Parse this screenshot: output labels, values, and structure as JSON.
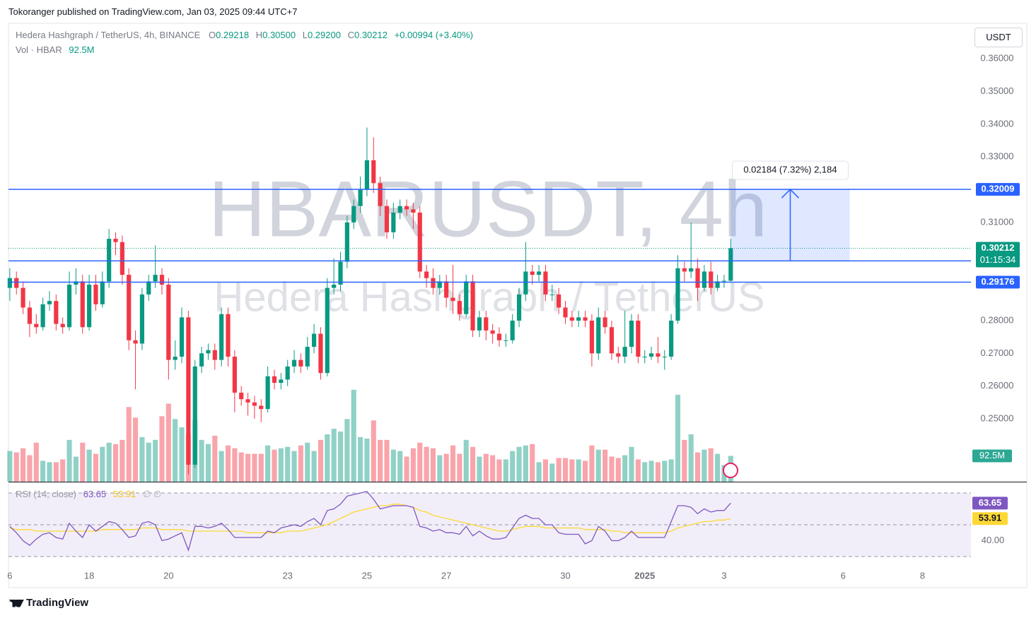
{
  "header": {
    "publisher": "Tokoranger published on TradingView.com, Jan 03, 2025 09:44 UTC+7"
  },
  "footer": {
    "brand": "TradingView"
  },
  "currency_button": "USDT",
  "chart_data": {
    "type": "candlestick",
    "symbol": "Hedera Hashgraph / TetherUS, 4h, BINANCE",
    "legend": [
      {
        "key": "O",
        "value": "0.29218"
      },
      {
        "key": "H",
        "value": "0.30500"
      },
      {
        "key": "L",
        "value": "0.29200"
      },
      {
        "key": "C",
        "value": "0.30212"
      }
    ],
    "change": "+0.00994 (+3.40%)",
    "watermark": [
      "HBARUSDT, 4h",
      "Hedera Hashgraph / TetherUS"
    ],
    "up_color": "#089981",
    "down_color": "#f23645",
    "xlim": [
      -0.2,
      145
    ],
    "xticks": [
      {
        "value": 0,
        "label": "6"
      },
      {
        "value": 12,
        "label": "18"
      },
      {
        "value": 24,
        "label": "20"
      },
      {
        "value": 42,
        "label": "23"
      },
      {
        "value": 54,
        "label": "25"
      },
      {
        "value": 66,
        "label": "27"
      },
      {
        "value": 84,
        "label": "30"
      },
      {
        "value": 96,
        "label": "2025"
      },
      {
        "value": 108,
        "label": "3"
      },
      {
        "value": 126,
        "label": "6"
      },
      {
        "value": 138,
        "label": "8"
      }
    ],
    "ylim": [
      0.2308,
      0.3704
    ],
    "yticks": [
      {
        "value": 0.25,
        "label": "0.25000"
      },
      {
        "value": 0.26,
        "label": "0.26000"
      },
      {
        "value": 0.27,
        "label": "0.27000"
      },
      {
        "value": 0.28,
        "label": "0.28000"
      },
      {
        "value": 0.31,
        "label": "0.31000"
      },
      {
        "value": 0.33,
        "label": "0.33000"
      },
      {
        "value": 0.34,
        "label": "0.34000"
      },
      {
        "value": 0.35,
        "label": "0.35000"
      },
      {
        "value": 0.36,
        "label": "0.36000"
      }
    ],
    "candles": [
      [
        0.29,
        0.296,
        0.286,
        0.293
      ],
      [
        0.293,
        0.295,
        0.288,
        0.29
      ],
      [
        0.29,
        0.292,
        0.282,
        0.284
      ],
      [
        0.284,
        0.286,
        0.275,
        0.279
      ],
      [
        0.279,
        0.282,
        0.276,
        0.278
      ],
      [
        0.278,
        0.287,
        0.277,
        0.285
      ],
      [
        0.285,
        0.289,
        0.283,
        0.286
      ],
      [
        0.286,
        0.288,
        0.277,
        0.279
      ],
      [
        0.279,
        0.281,
        0.276,
        0.278
      ],
      [
        0.278,
        0.295,
        0.277,
        0.291
      ],
      [
        0.291,
        0.296,
        0.288,
        0.292
      ],
      [
        0.292,
        0.294,
        0.276,
        0.278
      ],
      [
        0.278,
        0.294,
        0.277,
        0.291
      ],
      [
        0.291,
        0.294,
        0.283,
        0.285
      ],
      [
        0.285,
        0.295,
        0.284,
        0.292
      ],
      [
        0.292,
        0.308,
        0.29,
        0.305
      ],
      [
        0.305,
        0.307,
        0.3,
        0.304
      ],
      [
        0.304,
        0.306,
        0.291,
        0.294
      ],
      [
        0.294,
        0.296,
        0.271,
        0.274
      ],
      [
        0.274,
        0.277,
        0.259,
        0.273
      ],
      [
        0.273,
        0.29,
        0.271,
        0.288
      ],
      [
        0.288,
        0.294,
        0.286,
        0.292
      ],
      [
        0.292,
        0.303,
        0.29,
        0.294
      ],
      [
        0.294,
        0.296,
        0.288,
        0.291
      ],
      [
        0.291,
        0.293,
        0.262,
        0.268
      ],
      [
        0.268,
        0.274,
        0.265,
        0.269
      ],
      [
        0.269,
        0.284,
        0.267,
        0.281
      ],
      [
        0.281,
        0.283,
        0.233,
        0.236
      ],
      [
        0.236,
        0.268,
        0.235,
        0.266
      ],
      [
        0.266,
        0.272,
        0.264,
        0.27
      ],
      [
        0.27,
        0.273,
        0.268,
        0.271
      ],
      [
        0.271,
        0.273,
        0.265,
        0.268
      ],
      [
        0.268,
        0.284,
        0.266,
        0.282
      ],
      [
        0.282,
        0.284,
        0.266,
        0.269
      ],
      [
        0.269,
        0.271,
        0.252,
        0.258
      ],
      [
        0.258,
        0.26,
        0.254,
        0.256
      ],
      [
        0.256,
        0.258,
        0.251,
        0.255
      ],
      [
        0.255,
        0.257,
        0.25,
        0.254
      ],
      [
        0.254,
        0.256,
        0.249,
        0.253
      ],
      [
        0.253,
        0.266,
        0.252,
        0.263
      ],
      [
        0.263,
        0.265,
        0.259,
        0.261
      ],
      [
        0.261,
        0.264,
        0.259,
        0.262
      ],
      [
        0.262,
        0.268,
        0.26,
        0.266
      ],
      [
        0.266,
        0.271,
        0.264,
        0.268
      ],
      [
        0.268,
        0.27,
        0.264,
        0.266
      ],
      [
        0.266,
        0.275,
        0.265,
        0.272
      ],
      [
        0.272,
        0.279,
        0.27,
        0.276
      ],
      [
        0.276,
        0.278,
        0.262,
        0.264
      ],
      [
        0.264,
        0.293,
        0.263,
        0.29
      ],
      [
        0.29,
        0.299,
        0.288,
        0.291
      ],
      [
        0.291,
        0.301,
        0.289,
        0.298
      ],
      [
        0.298,
        0.312,
        0.296,
        0.31
      ],
      [
        0.31,
        0.317,
        0.308,
        0.315
      ],
      [
        0.315,
        0.324,
        0.313,
        0.32
      ],
      [
        0.32,
        0.339,
        0.318,
        0.329
      ],
      [
        0.329,
        0.336,
        0.319,
        0.322
      ],
      [
        0.322,
        0.324,
        0.312,
        0.315
      ],
      [
        0.315,
        0.317,
        0.305,
        0.307
      ],
      [
        0.307,
        0.316,
        0.305,
        0.313
      ],
      [
        0.313,
        0.317,
        0.311,
        0.315
      ],
      [
        0.315,
        0.317,
        0.312,
        0.314
      ],
      [
        0.314,
        0.316,
        0.308,
        0.313
      ],
      [
        0.313,
        0.315,
        0.293,
        0.295
      ],
      [
        0.295,
        0.297,
        0.29,
        0.293
      ],
      [
        0.293,
        0.296,
        0.288,
        0.29
      ],
      [
        0.29,
        0.294,
        0.288,
        0.292
      ],
      [
        0.292,
        0.294,
        0.284,
        0.287
      ],
      [
        0.287,
        0.297,
        0.282,
        0.286
      ],
      [
        0.286,
        0.288,
        0.28,
        0.282
      ],
      [
        0.282,
        0.294,
        0.281,
        0.292
      ],
      [
        0.292,
        0.294,
        0.275,
        0.277
      ],
      [
        0.277,
        0.283,
        0.275,
        0.281
      ],
      [
        0.281,
        0.283,
        0.274,
        0.277
      ],
      [
        0.277,
        0.279,
        0.273,
        0.276
      ],
      [
        0.276,
        0.278,
        0.272,
        0.274
      ],
      [
        0.274,
        0.276,
        0.272,
        0.274
      ],
      [
        0.274,
        0.282,
        0.273,
        0.28
      ],
      [
        0.28,
        0.29,
        0.278,
        0.288
      ],
      [
        0.288,
        0.304,
        0.286,
        0.295
      ],
      [
        0.295,
        0.297,
        0.291,
        0.294
      ],
      [
        0.294,
        0.297,
        0.292,
        0.295
      ],
      [
        0.295,
        0.297,
        0.286,
        0.288
      ],
      [
        0.288,
        0.291,
        0.286,
        0.288
      ],
      [
        0.288,
        0.29,
        0.282,
        0.284
      ],
      [
        0.284,
        0.286,
        0.279,
        0.281
      ],
      [
        0.281,
        0.283,
        0.278,
        0.28
      ],
      [
        0.28,
        0.283,
        0.278,
        0.281
      ],
      [
        0.281,
        0.283,
        0.278,
        0.28
      ],
      [
        0.28,
        0.282,
        0.266,
        0.27
      ],
      [
        0.27,
        0.284,
        0.268,
        0.281
      ],
      [
        0.281,
        0.283,
        0.276,
        0.278
      ],
      [
        0.278,
        0.28,
        0.268,
        0.27
      ],
      [
        0.27,
        0.272,
        0.267,
        0.269
      ],
      [
        0.269,
        0.283,
        0.267,
        0.272
      ],
      [
        0.272,
        0.282,
        0.27,
        0.28
      ],
      [
        0.28,
        0.282,
        0.267,
        0.269
      ],
      [
        0.269,
        0.271,
        0.267,
        0.269
      ],
      [
        0.269,
        0.272,
        0.268,
        0.27
      ],
      [
        0.27,
        0.275,
        0.267,
        0.269
      ],
      [
        0.269,
        0.271,
        0.265,
        0.269
      ],
      [
        0.269,
        0.282,
        0.268,
        0.28
      ],
      [
        0.28,
        0.3,
        0.279,
        0.296
      ],
      [
        0.296,
        0.298,
        0.292,
        0.295
      ],
      [
        0.295,
        0.31,
        0.293,
        0.296
      ],
      [
        0.296,
        0.299,
        0.286,
        0.29
      ],
      [
        0.29,
        0.297,
        0.289,
        0.295
      ],
      [
        0.295,
        0.298,
        0.288,
        0.29
      ],
      [
        0.29,
        0.294,
        0.289,
        0.292
      ],
      [
        0.292,
        0.294,
        0.29,
        0.29218
      ],
      [
        0.29218,
        0.305,
        0.292,
        0.30212
      ]
    ],
    "hlines": [
      0.32009,
      0.29826,
      0.29176
    ],
    "hline_color": "#2962ff",
    "last_price_countdown": "01:15:34",
    "measure": {
      "from_index": 109,
      "to_index": 127,
      "from_price": 0.29826,
      "to_price": 0.32009,
      "label": "0.02184 (7.32%) 2,184"
    },
    "volume": {
      "title": "Vol · HBAR",
      "last_label": "92.5M",
      "ylim": [
        0,
        1640
      ],
      "values": [
        110,
        105,
        120,
        95,
        140,
        75,
        70,
        70,
        80,
        150,
        90,
        140,
        115,
        100,
        125,
        140,
        135,
        150,
        268,
        230,
        160,
        140,
        150,
        235,
        280,
        225,
        195,
        170,
        220,
        150,
        135,
        165,
        110,
        130,
        120,
        105,
        100,
        100,
        100,
        130,
        115,
        120,
        125,
        110,
        130,
        140,
        110,
        150,
        170,
        190,
        180,
        225,
        330,
        160,
        155,
        220,
        150,
        150,
        115,
        110,
        90,
        120,
        140,
        125,
        120,
        95,
        100,
        130,
        100,
        150,
        125,
        90,
        100,
        95,
        80,
        80,
        110,
        125,
        130,
        135,
        70,
        80,
        65,
        85,
        85,
        80,
        80,
        75,
        130,
        115,
        115,
        90,
        85,
        95,
        125,
        80,
        70,
        75,
        70,
        75,
        80,
        312,
        150,
        170,
        105,
        115,
        120,
        100,
        60,
        92.5
      ]
    },
    "rsi": {
      "title": "RSI (14, close)",
      "extra": "∅ ∅",
      "color": "#7e57c2",
      "ma_color": "#fdd835",
      "ylim": [
        29.1,
        75.8
      ],
      "yticks": [
        {
          "value": 40,
          "label": "40.00"
        }
      ],
      "levels": [
        70,
        50,
        30
      ],
      "values": [
        49,
        45,
        40,
        37,
        41,
        44,
        45,
        42,
        41,
        51,
        46,
        42,
        50,
        46,
        49,
        52,
        51,
        47,
        42,
        43,
        51,
        52,
        50,
        40,
        41,
        43,
        45,
        34,
        49,
        49,
        48,
        49,
        51,
        47,
        42,
        42,
        42,
        42,
        42,
        46,
        45,
        48,
        49,
        50,
        49,
        52,
        54,
        50,
        59,
        60,
        63,
        68,
        69,
        70,
        71,
        66,
        60,
        61,
        62,
        62,
        62,
        61,
        49,
        48,
        46,
        47,
        45,
        45,
        44,
        49,
        43,
        46,
        43,
        41,
        41,
        42,
        48,
        54,
        56,
        54,
        54,
        50,
        50,
        45,
        44,
        44,
        44,
        38,
        40,
        49,
        46,
        40,
        40,
        42,
        46,
        42,
        42,
        42,
        42,
        42,
        52,
        62,
        62,
        61,
        57,
        60,
        58,
        59,
        59,
        63.65
      ],
      "ma_values": [
        48,
        47,
        47,
        47,
        46,
        46,
        46,
        46,
        46,
        46,
        46,
        46,
        46,
        46,
        47,
        47,
        47,
        47,
        47,
        47,
        48,
        48,
        48,
        47,
        47,
        47,
        47,
        46,
        46,
        46,
        46,
        46,
        46,
        46,
        46,
        46,
        45,
        45,
        45,
        45,
        45,
        45,
        46,
        46,
        46,
        47,
        48,
        49,
        50,
        52,
        54,
        56,
        58,
        59,
        60,
        61,
        62,
        62,
        63,
        63,
        62,
        61,
        59,
        58,
        56,
        55,
        54,
        53,
        52,
        51,
        50,
        49,
        48,
        47,
        46,
        46,
        47,
        48,
        49,
        49,
        49,
        48,
        48,
        48,
        48,
        48,
        48,
        47,
        47,
        47,
        47,
        46,
        46,
        45,
        45,
        45,
        45,
        45,
        45,
        45,
        46,
        48,
        49,
        50,
        51,
        52,
        52,
        53,
        53,
        53.91
      ]
    }
  }
}
